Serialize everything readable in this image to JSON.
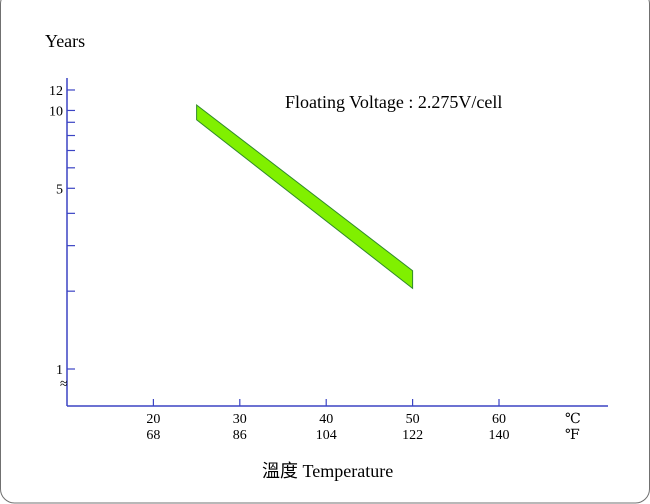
{
  "chart_data": {
    "type": "area",
    "ylabel": "Years",
    "xlabel": "溫度 Temperature",
    "annotation": "Floating Voltage : 2.275V/cell",
    "y_scale": "log",
    "ylim": [
      1,
      13
    ],
    "xlim_c": [
      10,
      65
    ],
    "x_ticks": [
      {
        "c": 20,
        "c_label": "20",
        "f_label": "68"
      },
      {
        "c": 30,
        "c_label": "30",
        "f_label": "86"
      },
      {
        "c": 40,
        "c_label": "40",
        "f_label": "104"
      },
      {
        "c": 50,
        "c_label": "50",
        "f_label": "122"
      },
      {
        "c": 60,
        "c_label": "60",
        "f_label": "140"
      }
    ],
    "unit_c": "℃",
    "unit_f": "℉",
    "y_tick_labels": [
      {
        "value": 12,
        "label": "12"
      },
      {
        "value": 10,
        "label": "10"
      },
      {
        "value": 5,
        "label": "5"
      },
      {
        "value": 1,
        "label": "1"
      }
    ],
    "y_minor_ticks": [
      9,
      8,
      7,
      6,
      4,
      3,
      2
    ],
    "axis_break_symbol": "≈",
    "band": {
      "x": [
        25,
        50
      ],
      "upper": [
        10.5,
        2.4
      ],
      "lower": [
        9.2,
        2.05
      ]
    },
    "colors": {
      "band_fill": "#80f000",
      "band_edge": "#2f8a2a",
      "axis": "#3b44c4"
    }
  }
}
